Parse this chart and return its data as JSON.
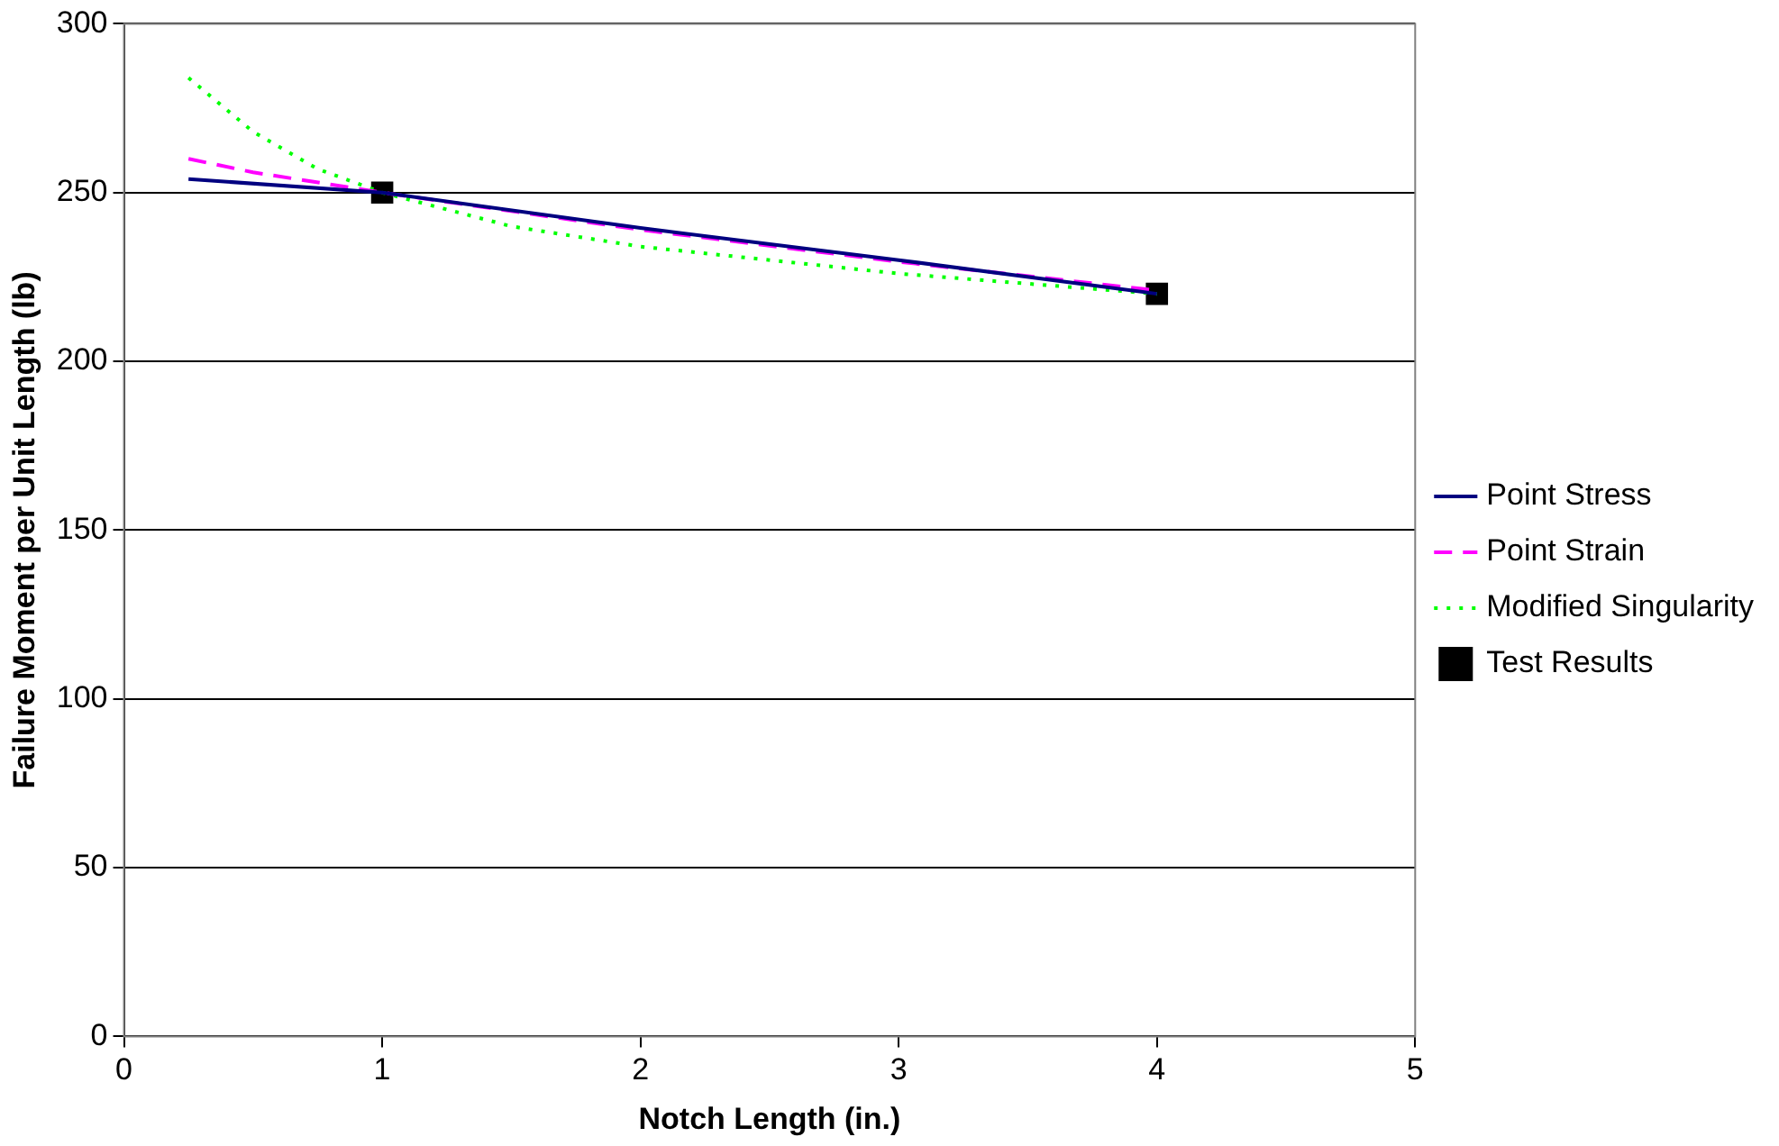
{
  "chart_data": {
    "type": "line",
    "xlabel": "Notch Length (in.)",
    "ylabel": "Failure Moment per Unit Length (lb)",
    "xlim": [
      0,
      5
    ],
    "xticks": [
      0,
      1,
      2,
      3,
      4,
      5
    ],
    "ylim": [
      0,
      300
    ],
    "yticks": [
      0,
      50,
      100,
      150,
      200,
      250,
      300
    ],
    "grid": "y",
    "legend": "right",
    "series": [
      {
        "name": "Point Stress",
        "color": "#000080",
        "line_style": "solid",
        "marker": "none",
        "x": [
          0.25,
          1,
          2,
          3,
          4
        ],
        "values": [
          254,
          250,
          239.5,
          230,
          220
        ]
      },
      {
        "name": "Point Strain",
        "color": "#ff00ff",
        "line_style": "dashed",
        "marker": "none",
        "x": [
          0.25,
          0.5,
          1,
          2,
          3,
          4
        ],
        "values": [
          260,
          256,
          250,
          239,
          229.5,
          221
        ]
      },
      {
        "name": "Modified Singularity",
        "color": "#00ff00",
        "line_style": "dotted",
        "marker": "none",
        "x": [
          0.25,
          0.5,
          0.75,
          1,
          1.5,
          2,
          3,
          4
        ],
        "values": [
          284,
          268,
          257,
          250,
          240,
          234,
          226,
          220
        ]
      },
      {
        "name": "Test Results",
        "type": "scatter",
        "color": "#000000",
        "marker": "square",
        "x": [
          1,
          4
        ],
        "values": [
          250,
          220
        ]
      }
    ]
  }
}
